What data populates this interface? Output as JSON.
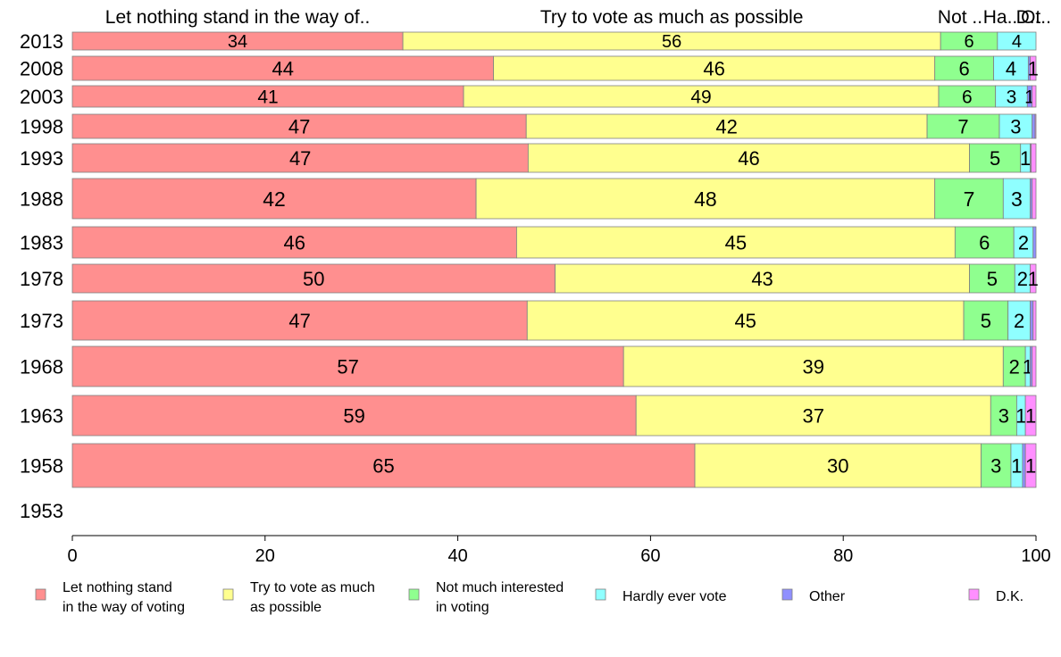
{
  "chart_data": {
    "type": "bar",
    "orientation": "horizontal",
    "stacked": true,
    "categories": [
      "2013",
      "2008",
      "2003",
      "1998",
      "1993",
      "1988",
      "1983",
      "1978",
      "1973",
      "1968",
      "1963",
      "1958",
      "1953"
    ],
    "series": [
      {
        "name": "Let nothing stand in the way of voting",
        "header": "Let nothing stand in the way of..",
        "color": "#ff8f8f",
        "values": [
          34.3,
          43.7,
          40.6,
          47.1,
          47.3,
          41.9,
          46.1,
          50.1,
          47.2,
          57.2,
          58.5,
          64.6,
          null
        ],
        "labels": [
          "34",
          "44",
          "41",
          "47",
          "47",
          "42",
          "46",
          "50",
          "47",
          "57",
          "59",
          "65",
          ""
        ]
      },
      {
        "name": "Try to vote as much as possible",
        "header": "Try to vote as much as possible",
        "color": "#ffff8f",
        "values": [
          55.8,
          45.8,
          49.3,
          41.6,
          45.8,
          47.6,
          45.5,
          43.0,
          45.3,
          39.4,
          36.8,
          29.7,
          null
        ],
        "labels": [
          "56",
          "46",
          "49",
          "42",
          "46",
          "48",
          "45",
          "43",
          "45",
          "39",
          "37",
          "30",
          ""
        ]
      },
      {
        "name": "Not much interested in voting",
        "header": "Not ..",
        "color": "#8fff8f",
        "values": [
          5.9,
          6.1,
          5.9,
          7.5,
          5.3,
          7.1,
          6.1,
          4.7,
          4.6,
          2.3,
          2.7,
          3.1,
          null
        ],
        "labels": [
          "6",
          "6",
          "6",
          "7",
          "5",
          "7",
          "6",
          "5",
          "5",
          "2",
          "3",
          "3",
          ""
        ]
      },
      {
        "name": "Hardly ever vote",
        "header": "Ha..",
        "color": "#8fffff",
        "values": [
          4.0,
          3.6,
          3.3,
          3.4,
          1.0,
          2.8,
          2.0,
          1.6,
          2.3,
          0.5,
          0.9,
          1.2,
          null
        ],
        "labels": [
          "4",
          "4",
          "3",
          "3",
          "1",
          "3",
          "2",
          "2",
          "2",
          "1",
          "1",
          "1",
          ""
        ]
      },
      {
        "name": "Other",
        "header": "Ot..",
        "color": "#8f8fff",
        "values": [
          0.0,
          0.2,
          0.5,
          0.3,
          0.1,
          0.2,
          0.3,
          0.0,
          0.3,
          0.2,
          0.0,
          0.3,
          null
        ],
        "labels": [
          "",
          "",
          "1",
          "",
          "",
          "",
          "",
          "",
          "",
          "",
          "",
          "",
          ""
        ]
      },
      {
        "name": "D.K.",
        "header": "D..",
        "color": "#ff8fff",
        "values": [
          0.0,
          0.6,
          0.4,
          0.1,
          0.5,
          0.4,
          0.0,
          0.6,
          0.3,
          0.4,
          1.1,
          1.1,
          null
        ],
        "labels": [
          "",
          "1",
          "",
          "",
          "",
          "",
          "",
          "1",
          "",
          "",
          "1",
          "1",
          ""
        ]
      }
    ],
    "xlim": [
      0,
      100
    ],
    "xticks": [
      "0",
      "20",
      "40",
      "60",
      "80",
      "100"
    ],
    "grid": false,
    "legend_position": "bottom",
    "legend_labels": [
      [
        "Let nothing stand",
        "in the way of voting"
      ],
      [
        "Try to vote as much",
        "as possible"
      ],
      [
        "Not much interested",
        "in voting"
      ],
      [
        "Hardly ever vote"
      ],
      [
        "Other"
      ],
      [
        "D.K."
      ]
    ]
  }
}
